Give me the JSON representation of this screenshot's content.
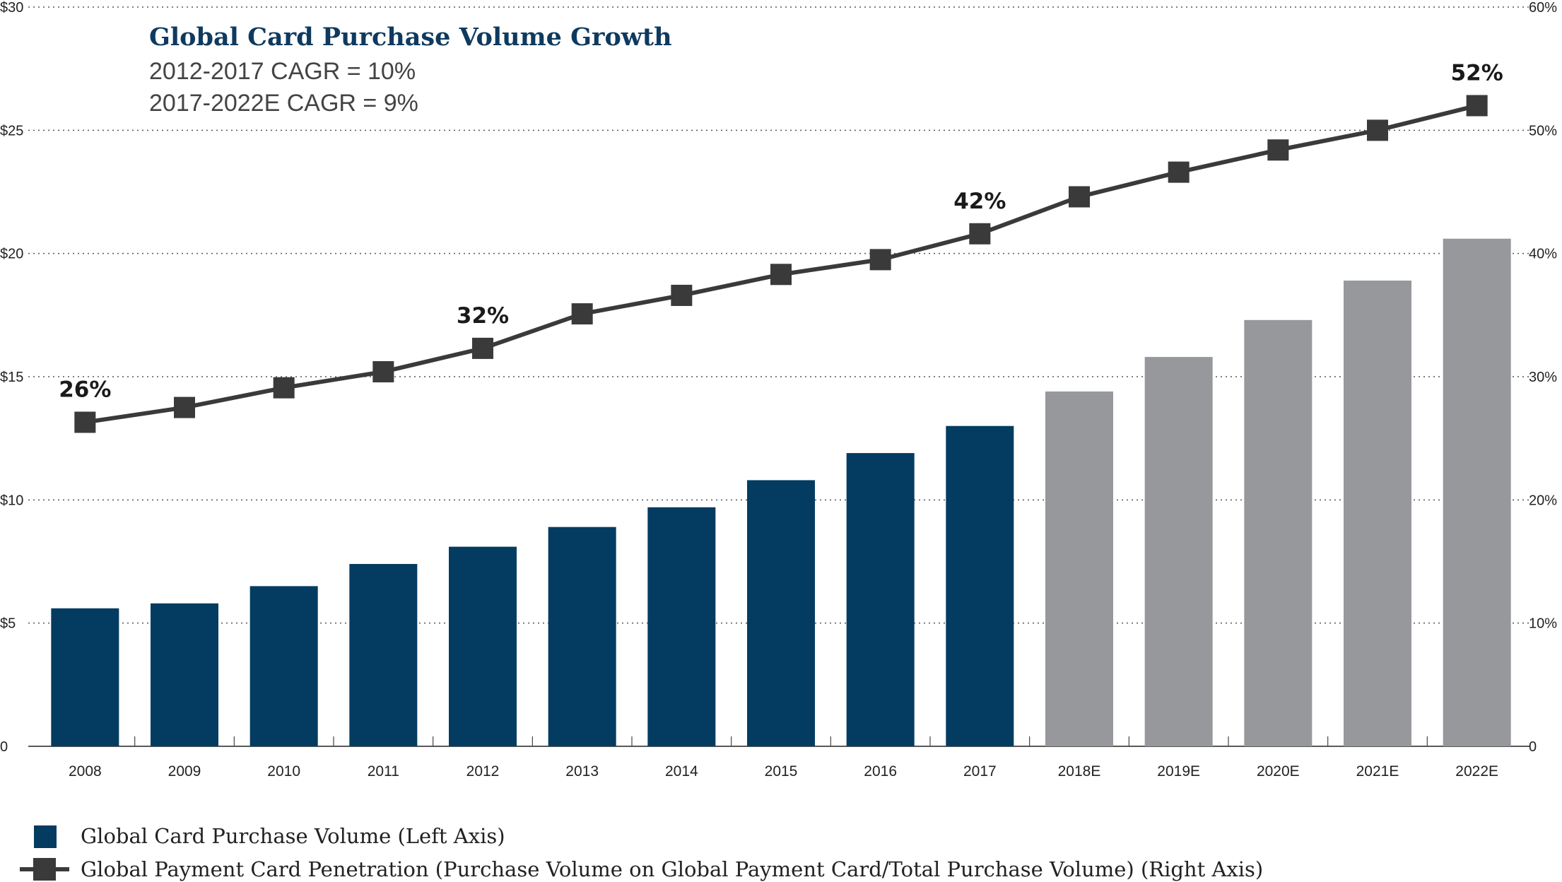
{
  "title": "Global Card Purchase Volume Growth",
  "subtitles": [
    "2012-2017 CAGR = 10%",
    "2017-2022E CAGR = 9%"
  ],
  "legend": {
    "bars": "Global Card Purchase Volume (Left Axis)",
    "line": "Global Payment Card Penetration (Purchase Volume on Global Payment Card/Total Purchase Volume) (Right Axis)"
  },
  "colors": {
    "actual": "#043c61",
    "estimate": "#97989b",
    "line": "#3a3a3a"
  },
  "chart_data": {
    "type": "bar",
    "categories": [
      "2008",
      "2009",
      "2010",
      "2011",
      "2012",
      "2013",
      "2014",
      "2015",
      "2016",
      "2017",
      "2018E",
      "2019E",
      "2020E",
      "2021E",
      "2022E"
    ],
    "series": [
      {
        "name": "Global Card Purchase Volume (Left Axis)",
        "type": "bar",
        "axis": "left",
        "values": [
          5.6,
          5.8,
          6.5,
          7.4,
          8.1,
          8.9,
          9.7,
          10.8,
          11.9,
          13.0,
          14.4,
          15.8,
          17.3,
          18.9,
          20.6
        ],
        "estimate_from_index": 10
      },
      {
        "name": "Global Payment Card Penetration (Purchase Volume on Global Payment Card/Total Purchase Volume) (Right Axis)",
        "type": "line",
        "axis": "right",
        "values": [
          26.3,
          27.5,
          29.1,
          30.4,
          32.3,
          35.1,
          36.6,
          38.3,
          39.5,
          41.6,
          44.6,
          46.6,
          48.4,
          50.0,
          52.0
        ]
      }
    ],
    "point_labels": [
      {
        "index": 0,
        "text": "26%"
      },
      {
        "index": 4,
        "text": "32%"
      },
      {
        "index": 9,
        "text": "42%"
      },
      {
        "index": 14,
        "text": "52%"
      }
    ],
    "y_left": {
      "ylim": [
        0,
        30
      ],
      "ticks": [
        0,
        5,
        10,
        15,
        20,
        25,
        30
      ],
      "tick_labels": [
        "0",
        "$5",
        "$10",
        "$15",
        "$20",
        "$25",
        "$30"
      ]
    },
    "y_right": {
      "ylim": [
        0,
        60
      ],
      "ticks": [
        0,
        10,
        20,
        30,
        40,
        50,
        60
      ],
      "tick_labels": [
        "0",
        "10%",
        "20%",
        "30%",
        "40%",
        "50%",
        "60%"
      ]
    },
    "grid": "horizontal dotted",
    "legend_position": "bottom-left"
  }
}
